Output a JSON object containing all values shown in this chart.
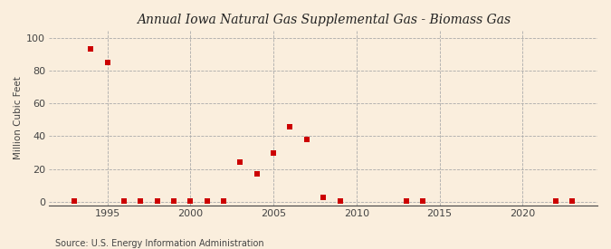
{
  "title": "Annual Iowa Natural Gas Supplemental Gas - Biomass Gas",
  "ylabel": "Million Cubic Feet",
  "source": "Source: U.S. Energy Information Administration",
  "background_color": "#faeedd",
  "plot_background_color": "#faeedd",
  "marker_color": "#cc0000",
  "marker_size": 18,
  "xlim": [
    1991.5,
    2024.5
  ],
  "ylim": [
    -2,
    104
  ],
  "yticks": [
    0,
    20,
    40,
    60,
    80,
    100
  ],
  "xticks": [
    1995,
    2000,
    2005,
    2010,
    2015,
    2020
  ],
  "data_x": [
    1993,
    1994,
    1995,
    1996,
    1997,
    1998,
    1999,
    2000,
    2001,
    2002,
    2003,
    2004,
    2005,
    2006,
    2007,
    2008,
    2009,
    2013,
    2014,
    2022,
    2023
  ],
  "data_y": [
    0.5,
    93,
    85,
    0.5,
    0.5,
    0.5,
    0.5,
    0.5,
    0.5,
    0.5,
    24,
    17,
    30,
    46,
    38,
    3,
    0.5,
    0.5,
    0.5,
    0.5,
    0.5
  ]
}
